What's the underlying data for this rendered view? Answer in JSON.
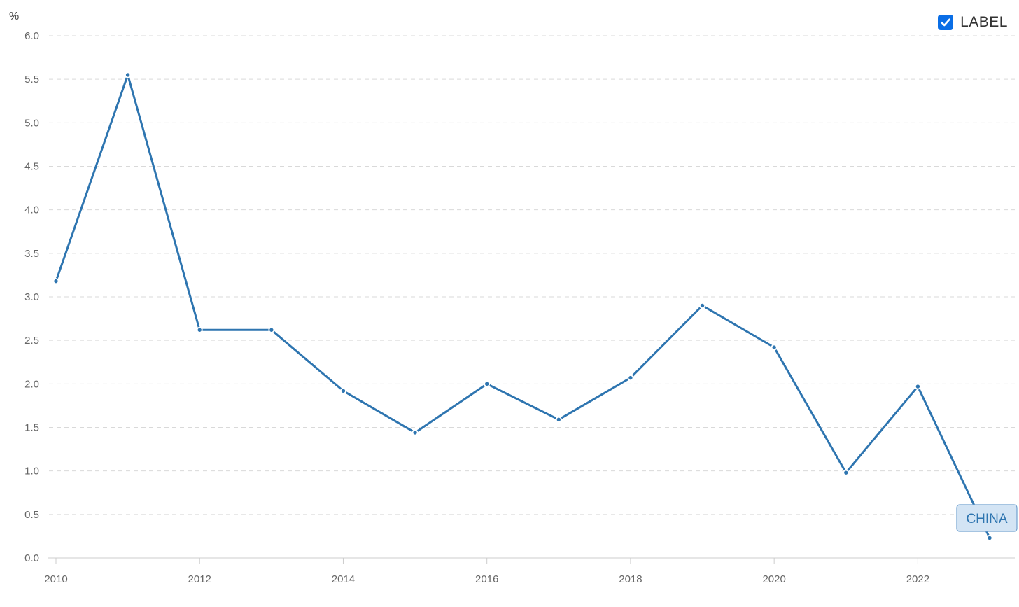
{
  "legend": {
    "label": "LABEL",
    "checked": true,
    "checkbox_color": "#0a6ee6",
    "checkbox_icon": "checkmark-icon"
  },
  "colors": {
    "series": "#2e75b0",
    "grid": "#d9d9d9",
    "axis": "#cccccc",
    "tick_text": "#666666",
    "tag_fill": "#d3e4f4",
    "tag_border": "#6fa0cf"
  },
  "chart_data": {
    "type": "line",
    "title": "",
    "xlabel": "",
    "ylabel": "%",
    "x": [
      2010,
      2011,
      2012,
      2013,
      2014,
      2015,
      2016,
      2017,
      2018,
      2019,
      2020,
      2021,
      2022,
      2023
    ],
    "series": [
      {
        "name": "CHINA",
        "values": [
          3.18,
          5.55,
          2.62,
          2.62,
          1.92,
          1.44,
          2.0,
          1.59,
          2.07,
          2.9,
          2.42,
          0.98,
          1.97,
          0.23
        ]
      }
    ],
    "xlim": [
      2010,
      2023
    ],
    "ylim": [
      0,
      6
    ],
    "x_ticks": [
      "2010",
      "2012",
      "2014",
      "2016",
      "2018",
      "2020",
      "2022"
    ],
    "y_ticks": [
      "0.0",
      "0.5",
      "1.0",
      "1.5",
      "2.0",
      "2.5",
      "3.0",
      "3.5",
      "4.0",
      "4.5",
      "5.0",
      "5.5",
      "6.0"
    ],
    "grid": true,
    "grid_style": "dashed",
    "legend_position": "top-right",
    "end_label": "CHINA"
  }
}
